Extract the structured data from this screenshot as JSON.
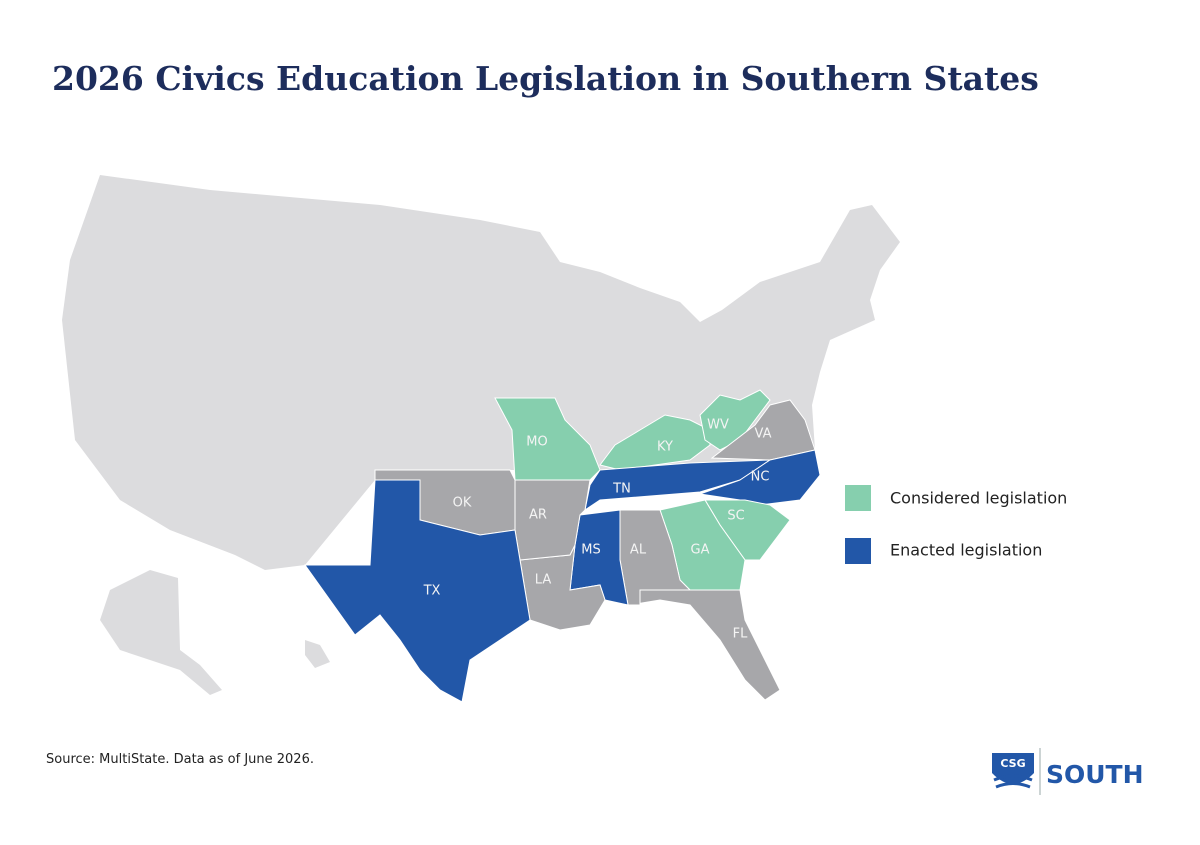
{
  "title": "2026 Civics Education Legislation in Southern States",
  "legend": [
    {
      "label": "Considered legislation",
      "color": "#86cfae"
    },
    {
      "label": "Enacted legislation",
      "color": "#2257a8"
    }
  ],
  "states": [
    {
      "label": "MO",
      "color": "#86cfae"
    },
    {
      "label": "KY",
      "color": "#86cfae"
    },
    {
      "label": "WV",
      "color": "#86cfae"
    },
    {
      "label": "VA",
      "color": "#a7a7aa"
    },
    {
      "label": "TN",
      "color": "#2257a8"
    },
    {
      "label": "NC",
      "color": "#2257a8"
    },
    {
      "label": "SC",
      "color": "#86cfae"
    },
    {
      "label": "GA",
      "color": "#86cfae"
    },
    {
      "label": "FL",
      "color": "#a7a7aa"
    },
    {
      "label": "AL",
      "color": "#a7a7aa"
    },
    {
      "label": "MS",
      "color": "#2257a8"
    },
    {
      "label": "LA",
      "color": "#a7a7aa"
    },
    {
      "label": "AR",
      "color": "#a7a7aa"
    },
    {
      "label": "OK",
      "color": "#a7a7aa"
    },
    {
      "label": "TX",
      "color": "#2257a8"
    }
  ],
  "source": "Source: MultiState. Data as of June 2026.",
  "logo": {
    "badge": "CSG",
    "name": "SOUTH"
  }
}
